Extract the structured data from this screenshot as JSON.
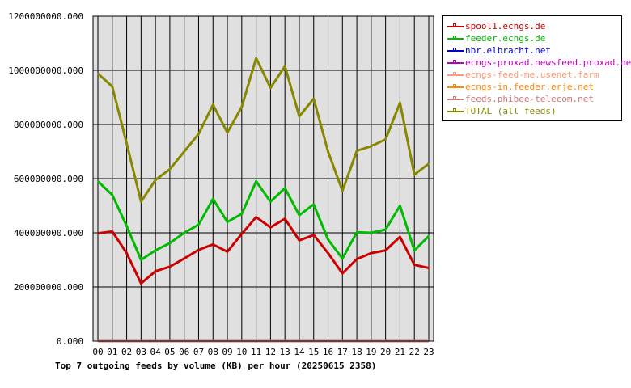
{
  "chart_data": {
    "type": "line",
    "title": "Top 7 outgoing feeds by volume (KB) per hour (20250615 2358)",
    "x": [
      "00",
      "01",
      "02",
      "03",
      "04",
      "05",
      "06",
      "07",
      "08",
      "09",
      "10",
      "11",
      "12",
      "13",
      "14",
      "15",
      "16",
      "17",
      "18",
      "19",
      "20",
      "21",
      "22",
      "23"
    ],
    "ylim": [
      0,
      1200000000
    ],
    "yticks": [
      "0.000",
      "200000000.000",
      "400000000.000",
      "600000000.000",
      "800000000.000",
      "1000000000.000",
      "1200000000.000"
    ],
    "grid": true,
    "legend_position": "right",
    "background": "#e0e0e0",
    "series": [
      {
        "name": "spool1.ecngs.de",
        "color": "#cc0000",
        "values": [
          398000000,
          405000000,
          325000000,
          213000000,
          258000000,
          275000000,
          305000000,
          337000000,
          357000000,
          330000000,
          396000000,
          458000000,
          420000000,
          452000000,
          372000000,
          392000000,
          325000000,
          250000000,
          303000000,
          325000000,
          335000000,
          385000000,
          282000000,
          270000000
        ]
      },
      {
        "name": "feeder.ecngs.de",
        "color": "#00bb00",
        "values": [
          590000000,
          540000000,
          425000000,
          300000000,
          335000000,
          362000000,
          400000000,
          430000000,
          525000000,
          440000000,
          470000000,
          590000000,
          515000000,
          565000000,
          465000000,
          505000000,
          375000000,
          305000000,
          402000000,
          400000000,
          412000000,
          500000000,
          335000000,
          388000000
        ]
      },
      {
        "name": "nbr.elbracht.net",
        "color": "#0000cc",
        "values": [
          0,
          0,
          0,
          0,
          0,
          0,
          0,
          0,
          0,
          0,
          0,
          0,
          0,
          0,
          0,
          0,
          0,
          0,
          0,
          0,
          0,
          0,
          0,
          0
        ]
      },
      {
        "name": "ecngs-proxad.newsfeed.proxad.net",
        "color": "#bb00bb",
        "values": [
          0,
          0,
          0,
          0,
          0,
          0,
          0,
          0,
          0,
          0,
          0,
          0,
          0,
          0,
          0,
          0,
          0,
          0,
          0,
          0,
          0,
          0,
          0,
          0
        ]
      },
      {
        "name": "ecngs-feed-me.usenet.farm",
        "color": "#ff9977",
        "values": [
          0,
          0,
          0,
          0,
          0,
          0,
          0,
          0,
          0,
          0,
          0,
          0,
          0,
          0,
          0,
          0,
          0,
          0,
          0,
          0,
          0,
          0,
          0,
          0
        ]
      },
      {
        "name": "ecngs-in.feeder.erje.net",
        "color": "#ff8800",
        "values": [
          0,
          0,
          0,
          0,
          0,
          0,
          0,
          0,
          0,
          0,
          0,
          0,
          0,
          0,
          0,
          0,
          0,
          0,
          0,
          0,
          0,
          0,
          0,
          0
        ]
      },
      {
        "name": "feeds.phibee-telecom.net",
        "color": "#cc7777",
        "values": [
          0,
          0,
          0,
          0,
          0,
          0,
          0,
          0,
          0,
          0,
          0,
          0,
          0,
          0,
          0,
          0,
          0,
          0,
          0,
          0,
          0,
          0,
          0,
          0
        ]
      },
      {
        "name": "TOTAL (all feeds)",
        "color": "#888800",
        "values": [
          988000000,
          940000000,
          730000000,
          515000000,
          595000000,
          635000000,
          700000000,
          765000000,
          873000000,
          770000000,
          865000000,
          1045000000,
          935000000,
          1015000000,
          830000000,
          895000000,
          700000000,
          555000000,
          703000000,
          720000000,
          745000000,
          880000000,
          615000000,
          655000000
        ]
      }
    ]
  }
}
